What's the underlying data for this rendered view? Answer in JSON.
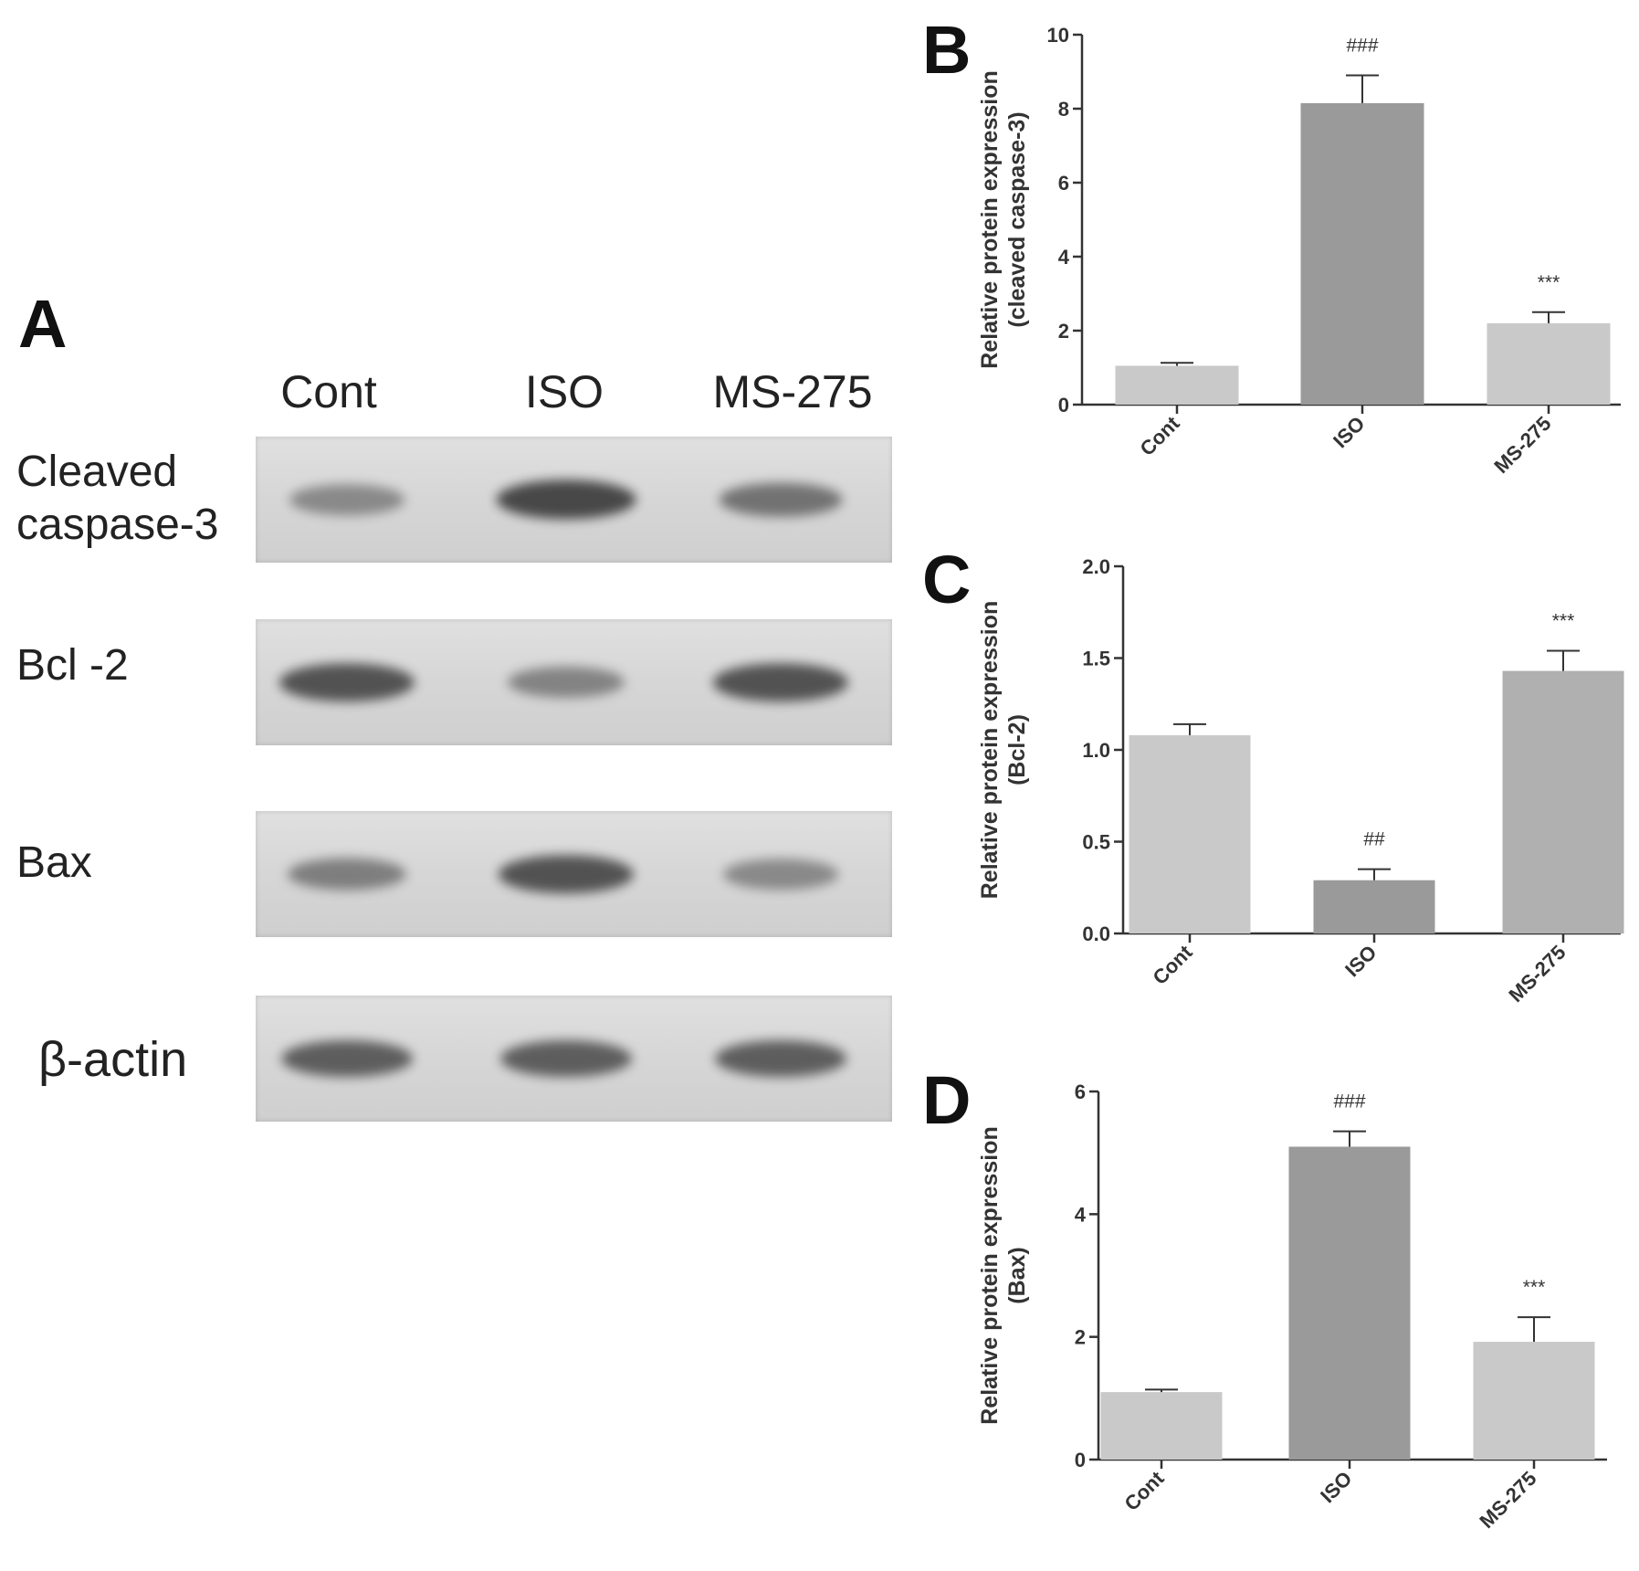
{
  "panel_a": {
    "letter": "A",
    "lanes": [
      "Cont",
      "ISO",
      "MS-275"
    ],
    "rows": [
      {
        "label": "Cleaved\ncaspase-3",
        "bands": [
          0.35,
          0.95,
          0.55
        ]
      },
      {
        "label": "Bcl -2",
        "bands": [
          0.85,
          0.4,
          0.85
        ]
      },
      {
        "label": "Bax",
        "bands": [
          0.45,
          0.85,
          0.35
        ]
      },
      {
        "label": "β-actin",
        "bands": [
          0.75,
          0.75,
          0.75
        ]
      }
    ],
    "band_color": "#3a3a3a"
  },
  "colors": {
    "light_bar": "#c9c9c9",
    "dark_bar": "#9a9a9a",
    "axis": "#333333"
  },
  "chart_data": [
    {
      "panel": "B",
      "type": "bar",
      "categories": [
        "Cont",
        "ISO",
        "MS-275"
      ],
      "values": [
        1.05,
        8.15,
        2.2
      ],
      "errors": [
        0.08,
        0.75,
        0.3
      ],
      "annotations": [
        "",
        "###",
        "***"
      ],
      "bar_colors": [
        "#c9c9c9",
        "#9a9a9a",
        "#c9c9c9"
      ],
      "ylabel": [
        "Relative protein expression",
        "(cleaved caspase-3)"
      ],
      "ylim": [
        0,
        10
      ],
      "yticks": [
        0,
        2,
        4,
        6,
        8,
        10
      ],
      "ytick_labels": [
        "0",
        "2",
        "4",
        "6",
        "8",
        "10"
      ],
      "grid": false
    },
    {
      "panel": "C",
      "type": "bar",
      "categories": [
        "Cont",
        "ISO",
        "MS-275"
      ],
      "values": [
        1.08,
        0.29,
        1.43
      ],
      "errors": [
        0.06,
        0.06,
        0.11
      ],
      "annotations": [
        "",
        "##",
        "***"
      ],
      "bar_colors": [
        "#c9c9c9",
        "#9a9a9a",
        "#b0b0b0"
      ],
      "ylabel": [
        "Relative protein expression",
        "(Bcl-2)"
      ],
      "ylim": [
        0,
        2.0
      ],
      "yticks": [
        0,
        0.5,
        1.0,
        1.5,
        2.0
      ],
      "ytick_labels": [
        "0.0",
        "0.5",
        "1.0",
        "1.5",
        "2.0"
      ],
      "grid": false
    },
    {
      "panel": "D",
      "type": "bar",
      "categories": [
        "Cont",
        "ISO",
        "MS-275"
      ],
      "values": [
        1.1,
        5.1,
        1.92
      ],
      "errors": [
        0.04,
        0.25,
        0.4
      ],
      "annotations": [
        "",
        "###",
        "***"
      ],
      "bar_colors": [
        "#c9c9c9",
        "#9a9a9a",
        "#c9c9c9"
      ],
      "ylabel": [
        "Relative protein expression",
        "(Bax)"
      ],
      "ylim": [
        0,
        6
      ],
      "yticks": [
        0,
        2,
        4,
        6
      ],
      "ytick_labels": [
        "0",
        "2",
        "4",
        "6"
      ],
      "grid": false
    }
  ]
}
